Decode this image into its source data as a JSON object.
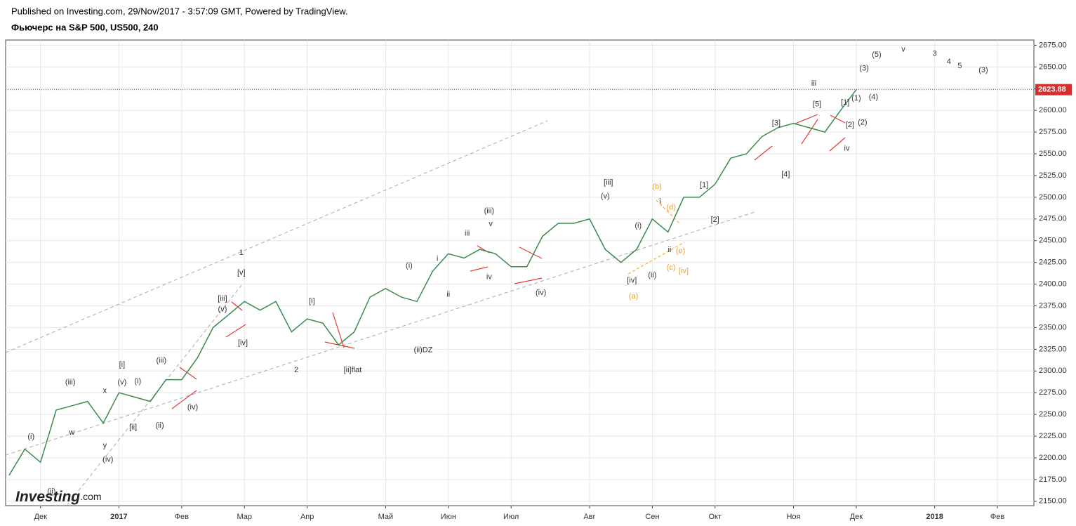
{
  "header": {
    "published": "Published on Investing.com, 29/Nov/2017 - 3:57:09 GMT, Powered by TradingView.",
    "instrument": "Фьючерс на S&P 500, US500, 240"
  },
  "logo": {
    "name": "Investing",
    "suffix": ".com"
  },
  "chart_data": {
    "type": "line",
    "categories": [
      null,
      null,
      "Дек",
      null,
      null,
      null,
      null,
      "2017",
      null,
      null,
      null,
      "Фев",
      null,
      null,
      null,
      "Мар",
      null,
      null,
      null,
      "Апр",
      null,
      null,
      null,
      null,
      "Май",
      null,
      null,
      null,
      "Июн",
      null,
      null,
      null,
      "Июл",
      null,
      null,
      null,
      null,
      "Авг",
      null,
      null,
      null,
      "Сен",
      null,
      null,
      null,
      "Окт",
      null,
      null,
      null,
      null,
      "Ноя",
      null,
      null,
      null,
      "Дек",
      null,
      null,
      null,
      null,
      "2018",
      null,
      null,
      null,
      "Фев",
      null
    ],
    "series": [
      {
        "color": "#3c8a4e",
        "values": [
          2180,
          2210,
          2195,
          2255,
          2260,
          2265,
          2240,
          2275,
          2270,
          2265,
          2290,
          2290,
          2315,
          2350,
          2365,
          2380,
          2370,
          2380,
          2345,
          2360,
          2355,
          2330,
          2345,
          2385,
          2395,
          2385,
          2380,
          2415,
          2435,
          2430,
          2440,
          2435,
          2420,
          2420,
          2455,
          2470,
          2470,
          2475,
          2440,
          2425,
          2440,
          2475,
          2460,
          2500,
          2500,
          2515,
          2545,
          2550,
          2570,
          2580,
          2585,
          2580,
          2575,
          2600,
          2623.88,
          null,
          null,
          null,
          null,
          null,
          null,
          null,
          null,
          null,
          null
        ]
      }
    ],
    "ylim": [
      2145,
      2681
    ],
    "yticks": [
      {
        "value": 2150,
        "label": "2150.00"
      },
      {
        "value": 2175,
        "label": "2175.00"
      },
      {
        "value": 2200,
        "label": "2200.00"
      },
      {
        "value": 2225,
        "label": "2225.00"
      },
      {
        "value": 2250,
        "label": "2250.00"
      },
      {
        "value": 2275,
        "label": "2275.00"
      },
      {
        "value": 2300,
        "label": "2300.00"
      },
      {
        "value": 2325,
        "label": "2325.00"
      },
      {
        "value": 2350,
        "label": "2350.00"
      },
      {
        "value": 2375,
        "label": "2375.00"
      },
      {
        "value": 2400,
        "label": "2400.00"
      },
      {
        "value": 2425,
        "label": "2425.00"
      },
      {
        "value": 2450,
        "label": "2450.00"
      },
      {
        "value": 2475,
        "label": "2475.00"
      },
      {
        "value": 2500,
        "label": "2500.00"
      },
      {
        "value": 2525,
        "label": "2525.00"
      },
      {
        "value": 2550,
        "label": "2550.00"
      },
      {
        "value": 2575,
        "label": "2575.00"
      },
      {
        "value": 2600,
        "label": "2600.00"
      },
      {
        "value": 2625,
        "label": "2625.00"
      },
      {
        "value": 2650,
        "label": "2650.00"
      },
      {
        "value": 2675,
        "label": "2675.00"
      }
    ],
    "grid": true,
    "last_price": {
      "value": 2623.88,
      "label": "2623.88",
      "color": "#d32f2f"
    },
    "annotations": [
      {
        "text": "(i)",
        "x": 1.4,
        "y": 2224
      },
      {
        "text": "(ii)",
        "x": 2.7,
        "y": 2161
      },
      {
        "text": "w",
        "x": 4.0,
        "y": 2229
      },
      {
        "text": "(iii)",
        "x": 3.9,
        "y": 2287
      },
      {
        "text": "x",
        "x": 6.1,
        "y": 2277
      },
      {
        "text": "y",
        "x": 6.1,
        "y": 2214
      },
      {
        "text": "(iv)",
        "x": 6.3,
        "y": 2198
      },
      {
        "text": "[i]",
        "x": 7.2,
        "y": 2307
      },
      {
        "text": "(v)",
        "x": 7.2,
        "y": 2287
      },
      {
        "text": "(i)",
        "x": 8.2,
        "y": 2288
      },
      {
        "text": "[ii]",
        "x": 7.9,
        "y": 2235
      },
      {
        "text": "(ii)",
        "x": 9.6,
        "y": 2237
      },
      {
        "text": "(iii)",
        "x": 9.7,
        "y": 2312
      },
      {
        "text": "(iv)",
        "x": 11.7,
        "y": 2258
      },
      {
        "text": "[iii]",
        "x": 13.6,
        "y": 2383
      },
      {
        "text": "(v)",
        "x": 13.6,
        "y": 2371
      },
      {
        "text": "1",
        "x": 14.8,
        "y": 2436
      },
      {
        "text": "[v]",
        "x": 14.8,
        "y": 2413
      },
      {
        "text": "[iv]",
        "x": 14.9,
        "y": 2332
      },
      {
        "text": "2",
        "x": 18.3,
        "y": 2301
      },
      {
        "text": "[i]",
        "x": 19.3,
        "y": 2380
      },
      {
        "text": "[ii]flat",
        "x": 21.9,
        "y": 2301
      },
      {
        "text": "(i)",
        "x": 25.5,
        "y": 2421
      },
      {
        "text": "(ii)DZ",
        "x": 26.4,
        "y": 2324
      },
      {
        "text": "i",
        "x": 27.3,
        "y": 2429
      },
      {
        "text": "ii",
        "x": 28.0,
        "y": 2388
      },
      {
        "text": "iii",
        "x": 29.2,
        "y": 2458
      },
      {
        "text": "(iii)",
        "x": 30.6,
        "y": 2484
      },
      {
        "text": "v",
        "x": 30.7,
        "y": 2469
      },
      {
        "text": "iv",
        "x": 30.6,
        "y": 2408
      },
      {
        "text": "(iv)",
        "x": 33.9,
        "y": 2390
      },
      {
        "text": "[iii]",
        "x": 38.2,
        "y": 2517
      },
      {
        "text": "(v)",
        "x": 38.0,
        "y": 2501
      },
      {
        "text": "[iv]",
        "x": 39.7,
        "y": 2404
      },
      {
        "text": "(ii)",
        "x": 41.0,
        "y": 2410
      },
      {
        "text": "(i)",
        "x": 40.1,
        "y": 2467
      },
      {
        "text": "(a)",
        "x": 39.8,
        "y": 2386,
        "color": "#f0a020"
      },
      {
        "text": "(b)",
        "x": 41.3,
        "y": 2512,
        "color": "#f0a020"
      },
      {
        "text": "i",
        "x": 41.5,
        "y": 2495
      },
      {
        "text": "(d)",
        "x": 42.2,
        "y": 2488,
        "color": "#f0a020"
      },
      {
        "text": "ii",
        "x": 42.1,
        "y": 2439
      },
      {
        "text": "(e)",
        "x": 42.8,
        "y": 2438,
        "color": "#f0a020"
      },
      {
        "text": "(c)",
        "x": 42.2,
        "y": 2419,
        "color": "#f0a020"
      },
      {
        "text": "[iv]",
        "x": 43.0,
        "y": 2415,
        "color": "#f0a020"
      },
      {
        "text": "[1]",
        "x": 44.3,
        "y": 2514
      },
      {
        "text": "[2]",
        "x": 45.0,
        "y": 2474
      },
      {
        "text": "[3]",
        "x": 48.9,
        "y": 2585
      },
      {
        "text": "[4]",
        "x": 49.5,
        "y": 2526
      },
      {
        "text": "iii",
        "x": 51.3,
        "y": 2631
      },
      {
        "text": "[5]",
        "x": 51.5,
        "y": 2607
      },
      {
        "text": "[1]",
        "x": 53.3,
        "y": 2609
      },
      {
        "text": "(1)",
        "x": 54.0,
        "y": 2614
      },
      {
        "text": "[2]",
        "x": 53.6,
        "y": 2583
      },
      {
        "text": "(2)",
        "x": 54.4,
        "y": 2586
      },
      {
        "text": "iv",
        "x": 53.4,
        "y": 2556
      },
      {
        "text": "(3)",
        "x": 54.5,
        "y": 2648
      },
      {
        "text": "(4)",
        "x": 55.1,
        "y": 2615
      },
      {
        "text": "(5)",
        "x": 55.3,
        "y": 2664
      },
      {
        "text": "v",
        "x": 57.0,
        "y": 2670
      },
      {
        "text": "3",
        "x": 59.0,
        "y": 2665
      },
      {
        "text": "4",
        "x": 59.9,
        "y": 2656
      },
      {
        "text": "5",
        "x": 60.6,
        "y": 2651
      },
      {
        "text": "(3)",
        "x": 62.1,
        "y": 2646
      }
    ]
  }
}
